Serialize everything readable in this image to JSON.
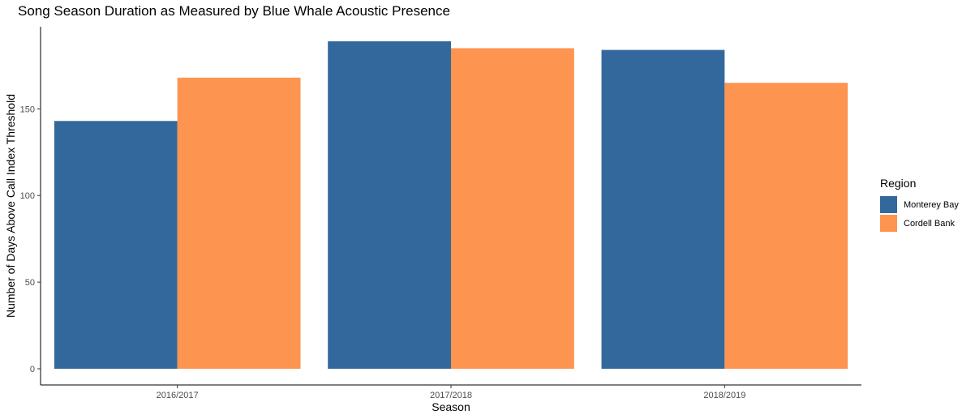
{
  "chart_data": {
    "type": "bar",
    "title": "Song Season Duration as Measured by Blue Whale Acoustic Presence",
    "xlabel": "Season",
    "ylabel": "Number of Days Above Call Index Threshold",
    "categories": [
      "2016/2017",
      "2017/2018",
      "2018/2019"
    ],
    "series": [
      {
        "name": "Monterey Bay",
        "values": [
          143,
          189,
          184
        ],
        "color": "#33689C"
      },
      {
        "name": "Cordell Bank",
        "values": [
          168,
          185,
          165
        ],
        "color": "#FD9450"
      }
    ],
    "ylim": [
      0,
      199
    ],
    "yticks": [
      0,
      50,
      100,
      150
    ],
    "grid": false,
    "legend_title": "Region",
    "legend_position": "right"
  }
}
